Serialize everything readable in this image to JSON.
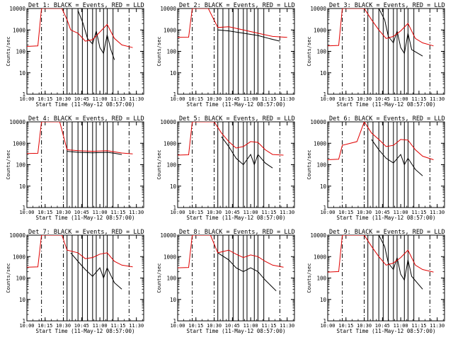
{
  "figure": {
    "xlabel": "Start Time (11-May-12 08:57:00)",
    "ylabel": "Counts/sec",
    "x_tick_labels": [
      "10:00",
      "10:15",
      "10:30",
      "10:45",
      "11:00",
      "11:15",
      "11:30"
    ],
    "y_tick_labels": [
      "1",
      "10",
      "100",
      "1000",
      "10000"
    ],
    "colors": {
      "events": "#000000",
      "lld": "#e00000",
      "axes": "#000000"
    }
  },
  "chart_data": [
    {
      "type": "line",
      "title": "Det 1: BLACK = Events, RED = LLD",
      "y_scale": "log",
      "ylim": [
        1,
        10000
      ],
      "series": [
        {
          "name": "Events",
          "color": "#000000",
          "points": [
            [
              10.7,
              8000
            ],
            [
              10.77,
              2000
            ],
            [
              10.83,
              400
            ],
            [
              10.9,
              220
            ],
            [
              10.95,
              900
            ],
            [
              11.0,
              150
            ],
            [
              11.05,
              80
            ],
            [
              11.1,
              600
            ],
            [
              11.15,
              120
            ],
            [
              11.2,
              40
            ]
          ]
        },
        {
          "name": "LLD",
          "color": "#e00000",
          "points": [
            [
              10.0,
              170
            ],
            [
              10.15,
              180
            ],
            [
              10.2,
              10000
            ],
            [
              10.48,
              10000
            ],
            [
              10.55,
              3000
            ],
            [
              10.6,
              1000
            ],
            [
              10.7,
              700
            ],
            [
              10.8,
              300
            ],
            [
              10.9,
              350
            ],
            [
              11.0,
              800
            ],
            [
              11.1,
              1800
            ],
            [
              11.2,
              400
            ],
            [
              11.3,
              200
            ],
            [
              11.45,
              150
            ]
          ]
        }
      ]
    },
    {
      "type": "line",
      "title": "Det 2: BLACK = Events, RED = LLD",
      "y_scale": "log",
      "ylim": [
        1,
        10000
      ],
      "series": [
        {
          "name": "Events",
          "color": "#000000",
          "points": [
            [
              10.55,
              1000
            ],
            [
              10.7,
              900
            ],
            [
              10.9,
              700
            ],
            [
              11.1,
              550
            ],
            [
              11.25,
              400
            ],
            [
              11.4,
              300
            ]
          ]
        },
        {
          "name": "LLD",
          "color": "#e00000",
          "points": [
            [
              10.0,
              450
            ],
            [
              10.15,
              460
            ],
            [
              10.2,
              10000
            ],
            [
              10.42,
              10000
            ],
            [
              10.55,
              1300
            ],
            [
              10.7,
              1400
            ],
            [
              10.9,
              1000
            ],
            [
              11.1,
              700
            ],
            [
              11.3,
              500
            ],
            [
              11.5,
              450
            ]
          ]
        }
      ]
    },
    {
      "type": "line",
      "title": "Det 3: BLACK = Events, RED = LLD",
      "y_scale": "log",
      "ylim": [
        1,
        10000
      ],
      "series": [
        {
          "name": "Events",
          "color": "#000000",
          "points": [
            [
              10.7,
              10000
            ],
            [
              10.78,
              3000
            ],
            [
              10.83,
              500
            ],
            [
              10.9,
              250
            ],
            [
              10.95,
              900
            ],
            [
              11.0,
              150
            ],
            [
              11.05,
              80
            ],
            [
              11.1,
              700
            ],
            [
              11.15,
              120
            ],
            [
              11.3,
              60
            ]
          ]
        },
        {
          "name": "LLD",
          "color": "#e00000",
          "points": [
            [
              10.0,
              180
            ],
            [
              10.15,
              190
            ],
            [
              10.2,
              10000
            ],
            [
              10.5,
              10000
            ],
            [
              10.6,
              3000
            ],
            [
              10.7,
              1000
            ],
            [
              10.8,
              400
            ],
            [
              10.9,
              500
            ],
            [
              11.0,
              900
            ],
            [
              11.1,
              2000
            ],
            [
              11.2,
              400
            ],
            [
              11.3,
              250
            ],
            [
              11.45,
              180
            ]
          ]
        }
      ]
    },
    {
      "type": "line",
      "title": "Det 4: BLACK = Events, RED = LLD",
      "y_scale": "log",
      "ylim": [
        1,
        10000
      ],
      "series": [
        {
          "name": "Events",
          "color": "#000000",
          "points": [
            [
              10.55,
              420
            ],
            [
              10.7,
              380
            ],
            [
              10.9,
              360
            ],
            [
              11.1,
              380
            ],
            [
              11.2,
              340
            ],
            [
              11.3,
              300
            ]
          ]
        },
        {
          "name": "LLD",
          "color": "#e00000",
          "points": [
            [
              10.0,
              330
            ],
            [
              10.15,
              340
            ],
            [
              10.2,
              10000
            ],
            [
              10.45,
              10000
            ],
            [
              10.55,
              500
            ],
            [
              10.7,
              450
            ],
            [
              10.9,
              420
            ],
            [
              11.1,
              450
            ],
            [
              11.3,
              350
            ],
            [
              11.45,
              320
            ]
          ]
        }
      ]
    },
    {
      "type": "line",
      "title": "Det 5: BLACK = Events, RED = LLD",
      "y_scale": "log",
      "ylim": [
        1,
        10000
      ],
      "series": [
        {
          "name": "Events",
          "color": "#000000",
          "points": [
            [
              10.6,
              2000
            ],
            [
              10.7,
              700
            ],
            [
              10.8,
              200
            ],
            [
              10.9,
              100
            ],
            [
              11.0,
              300
            ],
            [
              11.05,
              100
            ],
            [
              11.1,
              300
            ],
            [
              11.2,
              120
            ],
            [
              11.3,
              70
            ]
          ]
        },
        {
          "name": "LLD",
          "color": "#e00000",
          "points": [
            [
              10.0,
              280
            ],
            [
              10.15,
              290
            ],
            [
              10.2,
              10000
            ],
            [
              10.5,
              10000
            ],
            [
              10.6,
              3000
            ],
            [
              10.7,
              1200
            ],
            [
              10.8,
              600
            ],
            [
              10.9,
              700
            ],
            [
              11.0,
              1200
            ],
            [
              11.1,
              1100
            ],
            [
              11.2,
              500
            ],
            [
              11.3,
              300
            ],
            [
              11.45,
              280
            ]
          ]
        }
      ]
    },
    {
      "type": "line",
      "title": "Det 6: BLACK = Events, RED = LLD",
      "y_scale": "log",
      "ylim": [
        1,
        10000
      ],
      "series": [
        {
          "name": "Events",
          "color": "#000000",
          "points": [
            [
              10.6,
              1500
            ],
            [
              10.7,
              500
            ],
            [
              10.8,
              200
            ],
            [
              10.9,
              120
            ],
            [
              11.0,
              300
            ],
            [
              11.05,
              100
            ],
            [
              11.1,
              200
            ],
            [
              11.2,
              60
            ],
            [
              11.3,
              30
            ]
          ]
        },
        {
          "name": "LLD",
          "color": "#e00000",
          "points": [
            [
              10.0,
              170
            ],
            [
              10.15,
              180
            ],
            [
              10.2,
              800
            ],
            [
              10.4,
              1200
            ],
            [
              10.5,
              10000
            ],
            [
              10.6,
              3000
            ],
            [
              10.7,
              1500
            ],
            [
              10.8,
              700
            ],
            [
              10.9,
              800
            ],
            [
              11.0,
              1500
            ],
            [
              11.1,
              1400
            ],
            [
              11.2,
              500
            ],
            [
              11.3,
              250
            ],
            [
              11.45,
              170
            ]
          ]
        }
      ]
    },
    {
      "type": "line",
      "title": "Det 7: BLACK = Events, RED = LLD",
      "y_scale": "log",
      "ylim": [
        1,
        10000
      ],
      "series": [
        {
          "name": "Events",
          "color": "#000000",
          "points": [
            [
              10.6,
              1500
            ],
            [
              10.7,
              600
            ],
            [
              10.8,
              250
            ],
            [
              10.9,
              120
            ],
            [
              11.0,
              300
            ],
            [
              11.05,
              100
            ],
            [
              11.1,
              300
            ],
            [
              11.2,
              60
            ],
            [
              11.3,
              30
            ]
          ]
        },
        {
          "name": "LLD",
          "color": "#e00000",
          "points": [
            [
              10.0,
              320
            ],
            [
              10.15,
              330
            ],
            [
              10.2,
              10000
            ],
            [
              10.48,
              10000
            ],
            [
              10.55,
              2000
            ],
            [
              10.7,
              1500
            ],
            [
              10.8,
              800
            ],
            [
              10.9,
              900
            ],
            [
              11.0,
              1300
            ],
            [
              11.1,
              1500
            ],
            [
              11.2,
              600
            ],
            [
              11.3,
              400
            ],
            [
              11.45,
              330
            ]
          ]
        }
      ]
    },
    {
      "type": "line",
      "title": "Det 8: BLACK = Events, RED = LLD",
      "y_scale": "log",
      "ylim": [
        1,
        10000
      ],
      "series": [
        {
          "name": "Events",
          "color": "#000000",
          "points": [
            [
              10.55,
              1500
            ],
            [
              10.7,
              700
            ],
            [
              10.8,
              300
            ],
            [
              10.9,
              200
            ],
            [
              11.0,
              300
            ],
            [
              11.1,
              200
            ],
            [
              11.2,
              80
            ],
            [
              11.35,
              25
            ]
          ]
        },
        {
          "name": "LLD",
          "color": "#e00000",
          "points": [
            [
              10.0,
              300
            ],
            [
              10.15,
              310
            ],
            [
              10.2,
              10000
            ],
            [
              10.45,
              10000
            ],
            [
              10.55,
              1500
            ],
            [
              10.7,
              2000
            ],
            [
              10.8,
              1300
            ],
            [
              10.9,
              900
            ],
            [
              11.0,
              1200
            ],
            [
              11.1,
              1000
            ],
            [
              11.2,
              600
            ],
            [
              11.3,
              400
            ],
            [
              11.45,
              320
            ]
          ]
        }
      ]
    },
    {
      "type": "line",
      "title": "Det 9: BLACK = Events, RED = LLD",
      "y_scale": "log",
      "ylim": [
        1,
        10000
      ],
      "series": [
        {
          "name": "Events",
          "color": "#000000",
          "points": [
            [
              10.7,
              10000
            ],
            [
              10.78,
              3000
            ],
            [
              10.83,
              500
            ],
            [
              10.9,
              250
            ],
            [
              10.95,
              900
            ],
            [
              11.0,
              150
            ],
            [
              11.05,
              80
            ],
            [
              11.1,
              700
            ],
            [
              11.15,
              120
            ],
            [
              11.3,
              30
            ]
          ]
        },
        {
          "name": "LLD",
          "color": "#e00000",
          "points": [
            [
              10.0,
              190
            ],
            [
              10.15,
              200
            ],
            [
              10.2,
              10000
            ],
            [
              10.5,
              10000
            ],
            [
              10.6,
              3000
            ],
            [
              10.7,
              1000
            ],
            [
              10.8,
              400
            ],
            [
              10.9,
              500
            ],
            [
              11.0,
              900
            ],
            [
              11.1,
              2000
            ],
            [
              11.2,
              400
            ],
            [
              11.3,
              250
            ],
            [
              11.45,
              190
            ]
          ]
        }
      ]
    }
  ]
}
